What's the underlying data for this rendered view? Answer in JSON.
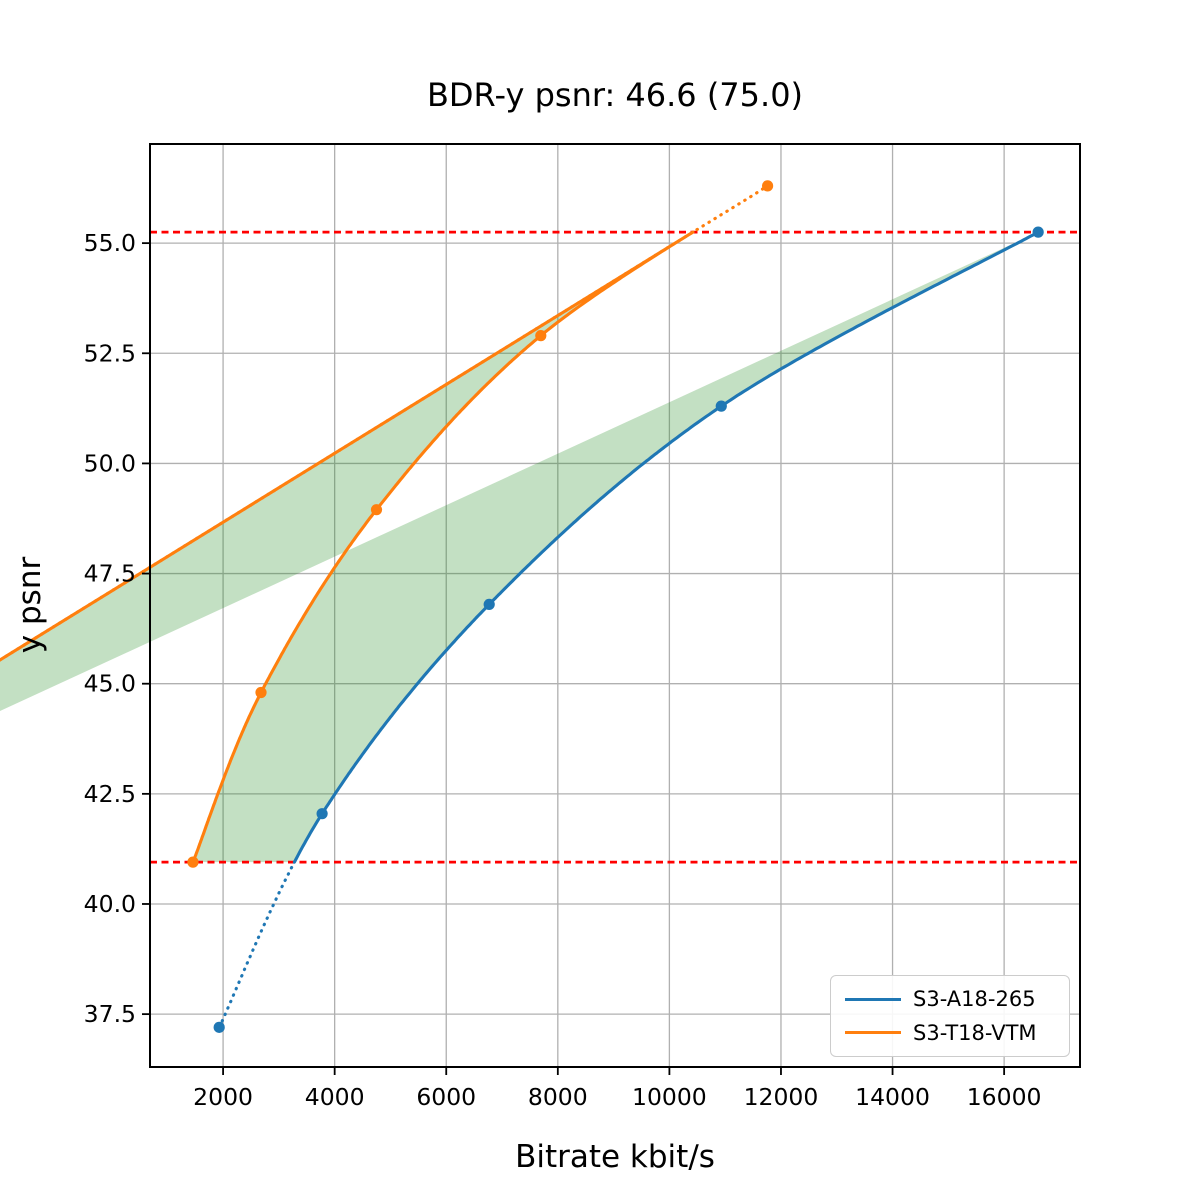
{
  "chart_data": {
    "type": "line",
    "title": "BDR-y psnr: 46.6 (75.0)",
    "xlabel": "Bitrate kbit/s",
    "ylabel": "y psnr",
    "xlim": [
      690,
      17360
    ],
    "ylim": [
      36.3,
      57.25
    ],
    "grid": true,
    "grid_color": "#b0b0b0",
    "legend_position": "lower right",
    "x_ticks": {
      "values": [
        2000,
        4000,
        6000,
        8000,
        10000,
        12000,
        14000,
        16000
      ],
      "labels": [
        "2000",
        "4000",
        "6000",
        "8000",
        "10000",
        "12000",
        "14000",
        "16000"
      ]
    },
    "y_ticks": {
      "values": [
        37.5,
        40.0,
        42.5,
        45.0,
        47.5,
        50.0,
        52.5,
        55.0
      ],
      "labels": [
        "37.5",
        "40.0",
        "42.5",
        "45.0",
        "47.5",
        "50.0",
        "52.5",
        "55.0"
      ]
    },
    "series": [
      {
        "name": "S3-A18-265",
        "color": "#1f77b4",
        "marker": "circle",
        "points": [
          [
            1930,
            37.2
          ],
          [
            3775,
            42.05
          ],
          [
            6770,
            46.8
          ],
          [
            10930,
            51.3
          ],
          [
            16610,
            55.25
          ]
        ]
      },
      {
        "name": "S3-T18-VTM",
        "color": "#ff7f0e",
        "marker": "circle",
        "points": [
          [
            1460,
            40.95
          ],
          [
            2680,
            44.8
          ],
          [
            4750,
            48.95
          ],
          [
            7695,
            52.9
          ],
          [
            11760,
            56.3
          ]
        ]
      }
    ],
    "bd_lines": {
      "color": "#ff0000",
      "style": "dashed",
      "psnr_low": 40.95,
      "psnr_high": 55.25
    },
    "bd_region": {
      "fill": "#228b22",
      "opacity": 0.27
    }
  }
}
